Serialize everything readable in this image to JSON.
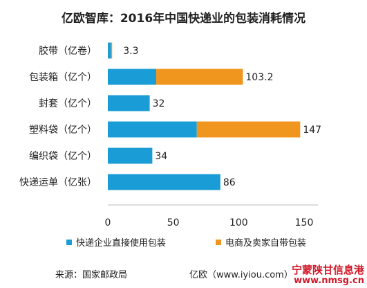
{
  "chart_data": {
    "type": "bar",
    "orientation": "horizontal",
    "stacked": true,
    "title": "亿欧智库：2016年中国快递业的包装消耗情况",
    "categories": [
      "胶带（亿卷）",
      "包装箱（亿个）",
      "封套（亿个）",
      "塑料袋（亿个）",
      "编织袋（亿个）",
      "快递运单（亿张）"
    ],
    "series": [
      {
        "name": "快递企业直接使用包装",
        "color": "#1a9cd6",
        "values": [
          2.5,
          37,
          32,
          68,
          34,
          86
        ]
      },
      {
        "name": "电商及卖家自带包装",
        "color": "#f0961e",
        "values": [
          0.8,
          66.2,
          0,
          79,
          0,
          0
        ]
      }
    ],
    "totals_labels": [
      "3.3",
      "103.2",
      "32",
      "147",
      "34",
      "86"
    ],
    "xlim": [
      0,
      150
    ],
    "xticks": [
      0,
      50,
      100,
      150
    ],
    "grid": false,
    "legend_position": "bottom"
  },
  "footer": {
    "source": "来源：国家邮政局",
    "credit": "亿欧（www.iyiou.com）"
  },
  "watermark": {
    "line1": "宁蒙陕甘信息港",
    "line2": "www.nmsg.cn"
  }
}
